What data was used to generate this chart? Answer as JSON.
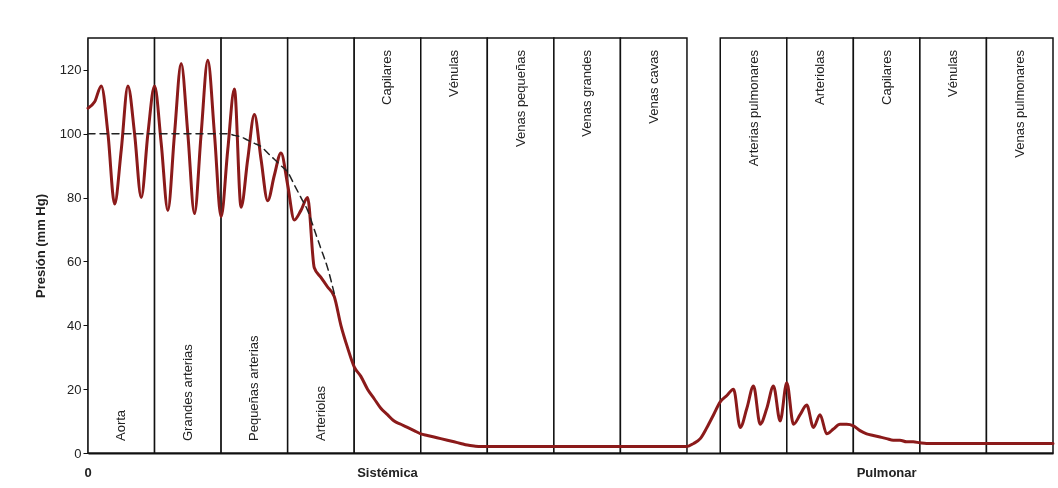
{
  "chart_data": {
    "type": "line",
    "ylabel": "Presión (mm Hg)",
    "ylim": [
      0,
      130
    ],
    "yticks": [
      0,
      20,
      40,
      60,
      80,
      100,
      120
    ],
    "grid": false,
    "marker": "none",
    "categories": [
      null,
      null,
      null,
      null,
      null,
      "Aorta",
      null,
      null,
      null,
      null,
      null,
      null,
      null,
      null,
      null,
      "Grandes arterias",
      null,
      null,
      null,
      null,
      null,
      null,
      null,
      null,
      null,
      "Pequeñas arterias",
      null,
      null,
      null,
      null,
      null,
      null,
      null,
      null,
      null,
      "Arteriolas",
      null,
      null,
      null,
      null,
      null,
      null,
      null,
      null,
      null,
      "Capilares",
      null,
      null,
      null,
      null,
      null,
      null,
      null,
      null,
      null,
      "Vénulas",
      null,
      null,
      null,
      null,
      null,
      null,
      null,
      null,
      null,
      "Venas pequeñas",
      null,
      null,
      null,
      null,
      null,
      null,
      null,
      null,
      null,
      "Venas grandes",
      null,
      null,
      null,
      null,
      null,
      null,
      null,
      null,
      null,
      "Venas cavas",
      null,
      null,
      null,
      null,
      null,
      null,
      null,
      null,
      null,
      null,
      null,
      null,
      null,
      null,
      "Arterias pulmonares",
      null,
      null,
      null,
      null,
      null,
      null,
      null,
      null,
      null,
      "Arteriolas",
      null,
      null,
      null,
      null,
      null,
      null,
      null,
      null,
      null,
      "Capilares",
      null,
      null,
      null,
      null,
      null,
      null,
      null,
      null,
      null,
      "Vénulas",
      null,
      null,
      null,
      null,
      null,
      null,
      null,
      null,
      null,
      "Venas pulmonares",
      null,
      null,
      null,
      null,
      null
    ],
    "series": [
      {
        "color": "#8b1a1a",
        "line_style": "solid",
        "values": [
          108,
          110,
          115,
          100,
          78,
          95,
          115,
          100,
          80,
          100,
          115,
          97,
          76,
          100,
          122,
          100,
          75,
          100,
          123,
          100,
          74,
          95,
          114,
          77,
          92,
          106,
          92,
          79,
          87,
          94,
          84,
          73,
          76,
          80,
          58,
          55,
          52,
          49,
          40,
          33,
          27,
          24,
          20,
          17,
          14,
          12,
          10,
          9,
          8,
          7,
          6,
          5.5,
          5,
          4.5,
          4,
          3.5,
          3,
          2.5,
          2.2,
          2,
          2,
          2,
          2,
          2,
          2,
          2,
          2,
          2,
          2,
          2,
          2,
          2,
          2,
          2,
          2,
          2,
          2,
          2,
          2,
          2,
          2,
          2,
          2,
          2,
          2,
          2,
          2,
          2,
          2,
          2,
          2,
          3,
          4.5,
          8,
          12,
          16,
          18,
          20,
          8,
          14,
          21,
          9,
          14,
          21,
          10,
          22,
          9,
          12,
          15,
          8,
          12,
          6,
          7.5,
          9,
          9,
          8.5,
          7,
          6,
          5.5,
          5,
          4.5,
          4,
          4,
          3.5,
          3.5,
          3.2,
          3,
          3,
          3,
          3,
          3,
          3,
          3,
          3,
          3,
          3,
          3,
          3,
          3,
          3,
          3,
          3,
          3,
          3,
          3,
          3
        ]
      },
      {
        "color": "#222222",
        "line_style": "dashed",
        "values": [
          100,
          100,
          100,
          100,
          100,
          100,
          100,
          100,
          100,
          100,
          100,
          100,
          100,
          100,
          100,
          100,
          100,
          100,
          100,
          100,
          100,
          100,
          99.5,
          99,
          98,
          97,
          96,
          94,
          92,
          90,
          88,
          84,
          80,
          76,
          70,
          64,
          58,
          50,
          null,
          null,
          null,
          null,
          null,
          null,
          null,
          null,
          null,
          null,
          null,
          null,
          null,
          null,
          null,
          null,
          null,
          null,
          null,
          null,
          null,
          null,
          null,
          null,
          null,
          null,
          null,
          null,
          null,
          null,
          null,
          null,
          null,
          null,
          null,
          null,
          null,
          null,
          null,
          null,
          null,
          null,
          null,
          null,
          null,
          null,
          null,
          null,
          null,
          null,
          null,
          null,
          null,
          null,
          null,
          null,
          null,
          null,
          null,
          null,
          null,
          null,
          null,
          null,
          null,
          null,
          null,
          null,
          null,
          null,
          null,
          null,
          null,
          null,
          null,
          null,
          null,
          null,
          null,
          null,
          null,
          null,
          null,
          null,
          null,
          null,
          null,
          null,
          null,
          null,
          null,
          null,
          null,
          null,
          null,
          null,
          null,
          null,
          null,
          null,
          null,
          null,
          null,
          null,
          null,
          null,
          null,
          null
        ]
      }
    ],
    "annotations": [
      "0",
      "Sistémica",
      "Pulmonar"
    ]
  }
}
